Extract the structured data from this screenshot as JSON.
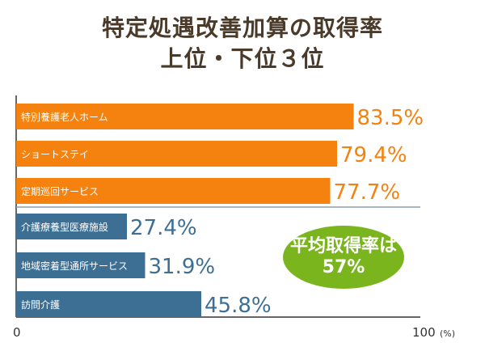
{
  "title": {
    "line1": "特定処遇改善加算の取得率",
    "line2": "上位・下位３位"
  },
  "badge": {
    "line1": "平均取得率は",
    "line2": "57%"
  },
  "colors": {
    "top": "#f5820f",
    "bottom": "#3d6f94",
    "badge": "#7ab51d"
  },
  "chart_data": {
    "type": "bar",
    "orientation": "horizontal",
    "categories": [
      "特別養護老人ホーム",
      "ショートステイ",
      "定期巡回サービス",
      "介護療養型医療施設",
      "地域密着型通所サービス",
      "訪問介護"
    ],
    "values": [
      83.5,
      79.4,
      77.7,
      27.4,
      31.9,
      45.8
    ],
    "value_labels": [
      "83.5%",
      "79.4%",
      "77.7%",
      "27.4%",
      "31.9%",
      "45.8%"
    ],
    "groups": [
      "top",
      "top",
      "top",
      "bottom",
      "bottom",
      "bottom"
    ],
    "xlim": [
      0,
      100
    ],
    "x_tick_labels": [
      "0",
      "100"
    ],
    "x_unit": "(%)",
    "grid": false
  }
}
